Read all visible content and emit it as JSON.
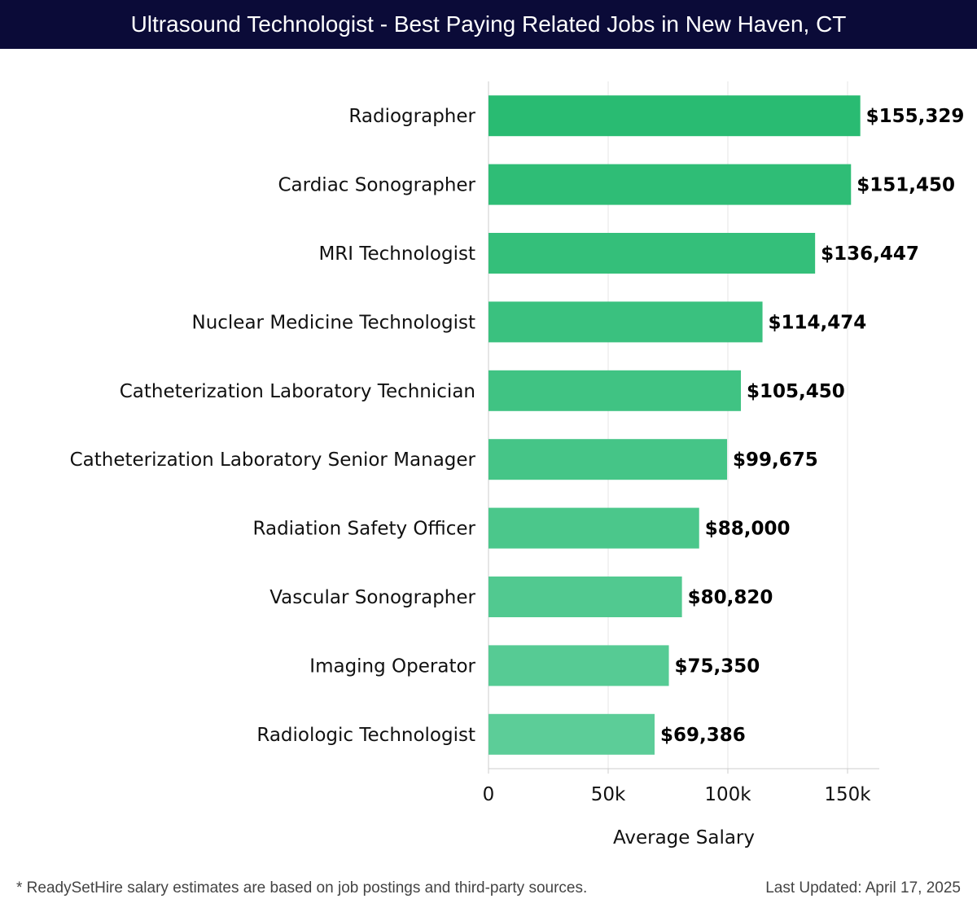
{
  "header": {
    "title": "Ultrasound Technologist - Best Paying Related Jobs in New Haven, CT"
  },
  "footer": {
    "note": "* ReadySetHire salary estimates are based on job postings and third-party sources.",
    "updated": "Last Updated: April 17, 2025"
  },
  "chart_data": {
    "type": "bar",
    "orientation": "horizontal",
    "categories": [
      "Radiographer",
      "Cardiac Sonographer",
      "MRI Technologist",
      "Nuclear Medicine Technologist",
      "Catheterization Laboratory Technician",
      "Catheterization Laboratory Senior Manager",
      "Radiation Safety Officer",
      "Vascular Sonographer",
      "Imaging Operator",
      "Radiologic Technologist"
    ],
    "values": [
      155329,
      151450,
      136447,
      114474,
      105450,
      99675,
      88000,
      80820,
      75350,
      69386
    ],
    "value_labels": [
      "$155,329",
      "$151,450",
      "$136,447",
      "$114,474",
      "$105,450",
      "$99,675",
      "$88,000",
      "$80,820",
      "$75,350",
      "$69,386"
    ],
    "xlabel": "Average Salary",
    "ylabel": "",
    "xlim": [
      0,
      163000
    ],
    "xticks": [
      0,
      50000,
      100000,
      150000
    ],
    "xtick_labels": [
      "0",
      "50k",
      "100k",
      "150k"
    ],
    "grid": "vertical",
    "legend": "none",
    "colors": {
      "bar_top": "#29bb72",
      "bar_bottom": "#5ccd98",
      "grid": "#e6e6e6",
      "axis": "#cccccc",
      "title_bg": "#0b0b38"
    }
  }
}
